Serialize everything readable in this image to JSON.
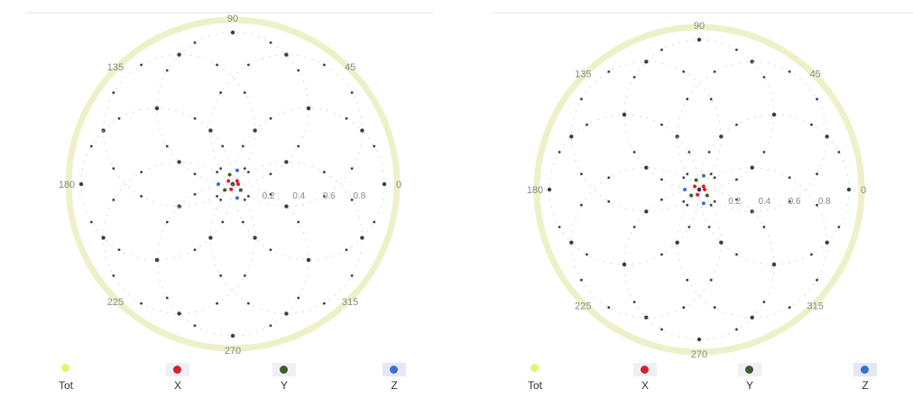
{
  "chart_data": [
    {
      "type": "polar-scatter",
      "angle_labels": [
        "0",
        "45",
        "90",
        "135",
        "180",
        "225",
        "270",
        "315"
      ],
      "radial_tick_labels": [
        "0.2",
        "0.4",
        "0.6",
        "0.8"
      ],
      "rmax": 1.0,
      "petals": [
        {
          "center_angle": 0,
          "center_r": 0.5,
          "radius": 0.5
        },
        {
          "center_angle": 45,
          "center_r": 0.5,
          "radius": 0.5
        },
        {
          "center_angle": 90,
          "center_r": 0.5,
          "radius": 0.5
        },
        {
          "center_angle": 135,
          "center_r": 0.5,
          "radius": 0.5
        },
        {
          "center_angle": 180,
          "center_r": 0.5,
          "radius": 0.5
        },
        {
          "center_angle": 225,
          "center_r": 0.5,
          "radius": 0.5
        },
        {
          "center_angle": 270,
          "center_r": 0.5,
          "radius": 0.5
        },
        {
          "center_angle": 315,
          "center_r": 0.5,
          "radius": 0.5
        }
      ],
      "series": [
        {
          "name": "Tot",
          "color": "#e8f26a"
        },
        {
          "name": "X",
          "color": "#d8202a"
        },
        {
          "name": "Y",
          "color": "#3b5e2b"
        },
        {
          "name": "Z",
          "color": "#3a6fd0"
        }
      ],
      "legend_position": "bottom"
    },
    {
      "type": "polar-scatter",
      "angle_labels": [
        "0",
        "45",
        "90",
        "135",
        "180",
        "225",
        "270",
        "315"
      ],
      "radial_tick_labels": [
        "0.2",
        "0.4",
        "0.6",
        "0.8"
      ],
      "rmax": 1.0,
      "petals": [
        {
          "center_angle": 0,
          "center_r": 0.5,
          "radius": 0.5
        },
        {
          "center_angle": 45,
          "center_r": 0.5,
          "radius": 0.5
        },
        {
          "center_angle": 90,
          "center_r": 0.5,
          "radius": 0.5
        },
        {
          "center_angle": 135,
          "center_r": 0.5,
          "radius": 0.5
        },
        {
          "center_angle": 180,
          "center_r": 0.5,
          "radius": 0.5
        },
        {
          "center_angle": 225,
          "center_r": 0.5,
          "radius": 0.5
        },
        {
          "center_angle": 270,
          "center_r": 0.5,
          "radius": 0.5
        },
        {
          "center_angle": 315,
          "center_r": 0.5,
          "radius": 0.5
        }
      ],
      "series": [
        {
          "name": "Tot",
          "color": "#e8f26a"
        },
        {
          "name": "X",
          "color": "#d8202a"
        },
        {
          "name": "Y",
          "color": "#3b5e2b"
        },
        {
          "name": "Z",
          "color": "#3a6fd0"
        }
      ],
      "legend_position": "bottom"
    }
  ]
}
